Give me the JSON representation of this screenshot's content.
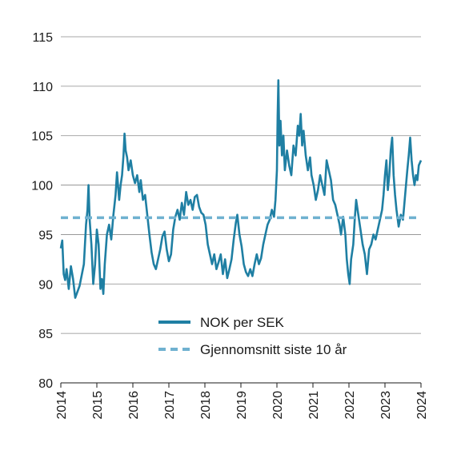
{
  "chart_data": {
    "type": "line",
    "title": "",
    "xlabel": "",
    "ylabel": "",
    "xlim": [
      2014,
      2024
    ],
    "ylim": [
      80,
      115
    ],
    "x_ticks": [
      "2014",
      "2015",
      "2016",
      "2017",
      "2018",
      "2019",
      "2020",
      "2021",
      "2022",
      "2023",
      "2024"
    ],
    "y_ticks": [
      "80",
      "85",
      "90",
      "95",
      "100",
      "105",
      "110",
      "115"
    ],
    "grid": "horizontal",
    "legend_position": "bottom-center",
    "series": [
      {
        "name": "NOK per SEK",
        "color": "#1f7fa3",
        "style": "solid",
        "points": [
          [
            2014.0,
            93.6
          ],
          [
            2014.04,
            94.4
          ],
          [
            2014.08,
            91.0
          ],
          [
            2014.12,
            90.4
          ],
          [
            2014.16,
            91.5
          ],
          [
            2014.22,
            89.5
          ],
          [
            2014.28,
            91.8
          ],
          [
            2014.34,
            90.5
          ],
          [
            2014.4,
            88.6
          ],
          [
            2014.46,
            89.2
          ],
          [
            2014.52,
            89.8
          ],
          [
            2014.58,
            90.9
          ],
          [
            2014.64,
            92.0
          ],
          [
            2014.7,
            96.0
          ],
          [
            2014.74,
            97.5
          ],
          [
            2014.77,
            100.0
          ],
          [
            2014.8,
            96.5
          ],
          [
            2014.85,
            94.0
          ],
          [
            2014.9,
            90.0
          ],
          [
            2014.95,
            92.0
          ],
          [
            2015.0,
            95.5
          ],
          [
            2015.05,
            94.0
          ],
          [
            2015.1,
            89.5
          ],
          [
            2015.14,
            90.5
          ],
          [
            2015.18,
            89.0
          ],
          [
            2015.22,
            92.0
          ],
          [
            2015.28,
            95.0
          ],
          [
            2015.34,
            96.0
          ],
          [
            2015.4,
            94.5
          ],
          [
            2015.46,
            97.0
          ],
          [
            2015.52,
            99.0
          ],
          [
            2015.56,
            101.3
          ],
          [
            2015.62,
            98.5
          ],
          [
            2015.66,
            100.0
          ],
          [
            2015.7,
            101.0
          ],
          [
            2015.74,
            103.0
          ],
          [
            2015.77,
            105.2
          ],
          [
            2015.8,
            103.5
          ],
          [
            2015.84,
            102.8
          ],
          [
            2015.88,
            101.5
          ],
          [
            2015.94,
            102.5
          ],
          [
            2016.0,
            101.0
          ],
          [
            2016.06,
            100.2
          ],
          [
            2016.12,
            101.0
          ],
          [
            2016.18,
            99.3
          ],
          [
            2016.22,
            100.5
          ],
          [
            2016.28,
            98.5
          ],
          [
            2016.34,
            99.0
          ],
          [
            2016.4,
            97.0
          ],
          [
            2016.46,
            95.0
          ],
          [
            2016.52,
            93.2
          ],
          [
            2016.58,
            92.0
          ],
          [
            2016.64,
            91.5
          ],
          [
            2016.7,
            92.5
          ],
          [
            2016.76,
            93.5
          ],
          [
            2016.82,
            94.8
          ],
          [
            2016.88,
            95.3
          ],
          [
            2016.94,
            93.5
          ],
          [
            2017.0,
            92.3
          ],
          [
            2017.06,
            93.0
          ],
          [
            2017.12,
            95.5
          ],
          [
            2017.18,
            96.8
          ],
          [
            2017.24,
            97.5
          ],
          [
            2017.3,
            96.5
          ],
          [
            2017.36,
            98.2
          ],
          [
            2017.42,
            97.0
          ],
          [
            2017.48,
            99.3
          ],
          [
            2017.54,
            98.0
          ],
          [
            2017.6,
            98.5
          ],
          [
            2017.66,
            97.5
          ],
          [
            2017.72,
            98.8
          ],
          [
            2017.78,
            99.0
          ],
          [
            2017.84,
            97.8
          ],
          [
            2017.9,
            97.2
          ],
          [
            2017.96,
            97.0
          ],
          [
            2018.02,
            96.0
          ],
          [
            2018.08,
            94.0
          ],
          [
            2018.14,
            93.0
          ],
          [
            2018.2,
            92.0
          ],
          [
            2018.26,
            93.0
          ],
          [
            2018.32,
            91.5
          ],
          [
            2018.38,
            92.2
          ],
          [
            2018.44,
            93.0
          ],
          [
            2018.5,
            91.0
          ],
          [
            2018.56,
            92.5
          ],
          [
            2018.62,
            90.6
          ],
          [
            2018.68,
            91.5
          ],
          [
            2018.74,
            92.5
          ],
          [
            2018.8,
            94.5
          ],
          [
            2018.86,
            96.2
          ],
          [
            2018.9,
            97.0
          ],
          [
            2018.96,
            95.0
          ],
          [
            2019.02,
            93.8
          ],
          [
            2019.08,
            92.0
          ],
          [
            2019.14,
            91.2
          ],
          [
            2019.2,
            90.8
          ],
          [
            2019.26,
            91.5
          ],
          [
            2019.32,
            90.8
          ],
          [
            2019.38,
            92.0
          ],
          [
            2019.44,
            93.0
          ],
          [
            2019.5,
            92.0
          ],
          [
            2019.56,
            92.6
          ],
          [
            2019.62,
            94.0
          ],
          [
            2019.68,
            95.0
          ],
          [
            2019.74,
            96.0
          ],
          [
            2019.8,
            96.5
          ],
          [
            2019.86,
            97.5
          ],
          [
            2019.92,
            96.8
          ],
          [
            2019.96,
            98.5
          ],
          [
            2020.0,
            101.5
          ],
          [
            2020.02,
            107.0
          ],
          [
            2020.04,
            110.6
          ],
          [
            2020.07,
            104.0
          ],
          [
            2020.1,
            106.5
          ],
          [
            2020.14,
            103.0
          ],
          [
            2020.18,
            105.0
          ],
          [
            2020.22,
            101.5
          ],
          [
            2020.28,
            103.5
          ],
          [
            2020.34,
            102.0
          ],
          [
            2020.4,
            101.0
          ],
          [
            2020.46,
            104.0
          ],
          [
            2020.52,
            103.0
          ],
          [
            2020.58,
            106.0
          ],
          [
            2020.62,
            105.0
          ],
          [
            2020.66,
            107.2
          ],
          [
            2020.7,
            104.0
          ],
          [
            2020.74,
            105.5
          ],
          [
            2020.8,
            103.0
          ],
          [
            2020.86,
            101.5
          ],
          [
            2020.92,
            102.8
          ],
          [
            2020.96,
            101.0
          ],
          [
            2021.02,
            100.0
          ],
          [
            2021.08,
            98.5
          ],
          [
            2021.14,
            99.5
          ],
          [
            2021.2,
            101.0
          ],
          [
            2021.26,
            100.0
          ],
          [
            2021.32,
            99.0
          ],
          [
            2021.38,
            102.5
          ],
          [
            2021.44,
            101.5
          ],
          [
            2021.5,
            100.5
          ],
          [
            2021.56,
            98.5
          ],
          [
            2021.62,
            98.0
          ],
          [
            2021.68,
            97.0
          ],
          [
            2021.74,
            96.0
          ],
          [
            2021.78,
            95.0
          ],
          [
            2021.84,
            96.8
          ],
          [
            2021.9,
            95.0
          ],
          [
            2021.94,
            92.5
          ],
          [
            2021.98,
            91.0
          ],
          [
            2022.02,
            90.0
          ],
          [
            2022.06,
            92.5
          ],
          [
            2022.12,
            94.0
          ],
          [
            2022.16,
            96.5
          ],
          [
            2022.2,
            98.5
          ],
          [
            2022.26,
            97.0
          ],
          [
            2022.32,
            95.5
          ],
          [
            2022.38,
            94.0
          ],
          [
            2022.44,
            93.0
          ],
          [
            2022.5,
            91.0
          ],
          [
            2022.56,
            93.5
          ],
          [
            2022.62,
            94.0
          ],
          [
            2022.68,
            95.0
          ],
          [
            2022.74,
            94.5
          ],
          [
            2022.8,
            95.5
          ],
          [
            2022.86,
            96.5
          ],
          [
            2022.92,
            97.5
          ],
          [
            2022.96,
            99.0
          ],
          [
            2023.0,
            101.0
          ],
          [
            2023.04,
            102.5
          ],
          [
            2023.08,
            99.5
          ],
          [
            2023.12,
            101.0
          ],
          [
            2023.16,
            103.5
          ],
          [
            2023.2,
            104.8
          ],
          [
            2023.24,
            101.0
          ],
          [
            2023.28,
            99.0
          ],
          [
            2023.32,
            97.5
          ],
          [
            2023.38,
            95.8
          ],
          [
            2023.44,
            97.0
          ],
          [
            2023.5,
            96.5
          ],
          [
            2023.56,
            99.0
          ],
          [
            2023.62,
            101.5
          ],
          [
            2023.66,
            103.0
          ],
          [
            2023.7,
            104.8
          ],
          [
            2023.74,
            102.5
          ],
          [
            2023.78,
            101.0
          ],
          [
            2023.82,
            100.0
          ],
          [
            2023.86,
            101.0
          ],
          [
            2023.9,
            100.5
          ],
          [
            2023.94,
            102.0
          ],
          [
            2024.0,
            102.5
          ]
        ]
      },
      {
        "name": "Gjennomsnitt siste 10 år",
        "color": "#6fb1d0",
        "style": "dashed",
        "points": [
          [
            2014.0,
            96.7
          ],
          [
            2024.0,
            96.7
          ]
        ]
      }
    ]
  }
}
